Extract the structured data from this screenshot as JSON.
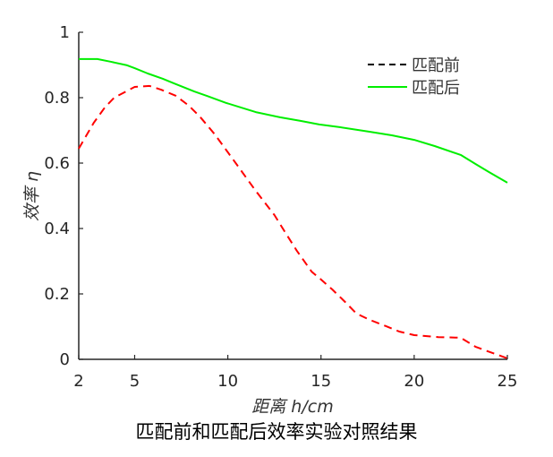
{
  "chart_data": {
    "type": "line",
    "caption": "匹配前和匹配后效率实验对照结果",
    "xlabel": "距离 h/cm",
    "ylabel": "效率 η",
    "xlim": [
      2,
      25
    ],
    "ylim": [
      0,
      1
    ],
    "xticks": [
      2,
      5,
      10,
      15,
      20,
      25
    ],
    "yticks": [
      0,
      0.2,
      0.4,
      0.6,
      0.8,
      1
    ],
    "ytick_labels": [
      "0",
      "0.2",
      "0.4",
      "0.6",
      "0.8",
      "1"
    ],
    "grid": false,
    "legend_position": "top-right",
    "series": [
      {
        "name": "匹配前",
        "color": "#ff0000",
        "legend_color": "#000000",
        "style": "dashed",
        "x": [
          2,
          2.8,
          3.4,
          3.9,
          5.0,
          5.8,
          6.4,
          7.2,
          7.9,
          8.5,
          9.3,
          9.9,
          10.6,
          11.5,
          12.5,
          13.1,
          13.7,
          14.5,
          15.0,
          15.6,
          16.3,
          16.9,
          17.6,
          18.5,
          19.2,
          20,
          21.3,
          22.5,
          23.3,
          25
        ],
        "y": [
          0.644,
          0.723,
          0.77,
          0.8,
          0.833,
          0.836,
          0.825,
          0.806,
          0.776,
          0.742,
          0.688,
          0.641,
          0.586,
          0.515,
          0.441,
          0.386,
          0.332,
          0.268,
          0.244,
          0.214,
          0.175,
          0.14,
          0.121,
          0.101,
          0.085,
          0.074,
          0.068,
          0.066,
          0.038,
          0.003
        ]
      },
      {
        "name": "匹配后",
        "color": "#00ee00",
        "legend_color": "#00ee00",
        "style": "solid",
        "x": [
          2,
          3.0,
          3.7,
          4.6,
          5.0,
          5.7,
          6.5,
          7.1,
          8.2,
          8.9,
          9.9,
          11.5,
          12.8,
          13.9,
          14.9,
          16.0,
          17.6,
          18.8,
          20,
          21.1,
          22.5,
          23.3,
          24.0,
          25
        ],
        "y": [
          0.918,
          0.918,
          0.91,
          0.899,
          0.89,
          0.874,
          0.858,
          0.844,
          0.819,
          0.805,
          0.784,
          0.756,
          0.74,
          0.729,
          0.718,
          0.71,
          0.696,
          0.685,
          0.671,
          0.652,
          0.625,
          0.597,
          0.573,
          0.54
        ]
      }
    ]
  }
}
